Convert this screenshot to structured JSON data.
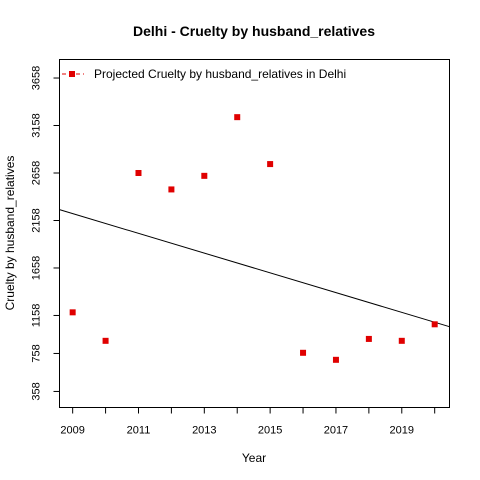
{
  "chart_data": {
    "type": "scatter",
    "title": "Delhi  -  Cruelty by husband_relatives",
    "xlabel": "Year",
    "ylabel": "Cruelty by husband_relatives",
    "x_tick_labels": [
      "2009",
      "2011",
      "2013",
      "2015",
      "2017",
      "2019"
    ],
    "y_tick_labels": [
      "358",
      "758",
      "1158",
      "1658",
      "2158",
      "2658",
      "3158",
      "3658"
    ],
    "xlim": [
      2008.6,
      2020.45
    ],
    "ylim": [
      189,
      3853
    ],
    "grid": false,
    "legend": {
      "position": "top-left",
      "entries": [
        "Projected  Cruelty by husband_relatives  in  Delhi"
      ]
    },
    "series": [
      {
        "name": "Projected  Cruelty by husband_relatives  in  Delhi",
        "color": "#e00000",
        "marker": "square",
        "x": [
          2009,
          2010,
          2011,
          2012,
          2013,
          2014,
          2015,
          2016,
          2017,
          2018,
          2019,
          2020
        ],
        "y": [
          1191,
          891,
          2658,
          2485,
          2628,
          3246,
          2752,
          765,
          691,
          911,
          891,
          1065
        ]
      }
    ],
    "trend_line": {
      "color": "#000000",
      "x": [
        2008.6,
        2020.45
      ],
      "y": [
        2272,
        1040
      ]
    }
  }
}
